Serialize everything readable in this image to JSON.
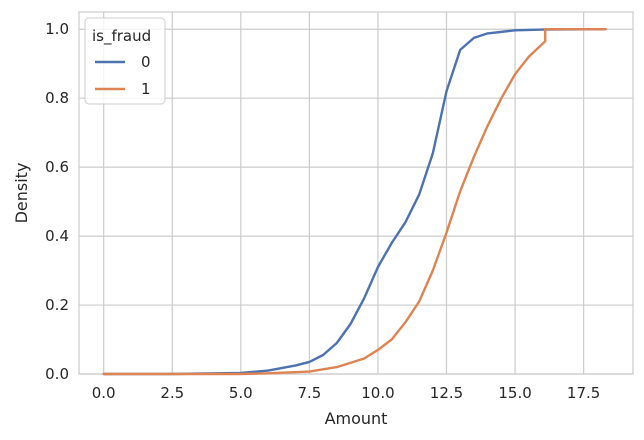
{
  "chart_data": {
    "type": "line",
    "xlabel": "Amount",
    "ylabel": "Density",
    "xlim": [
      -0.9,
      19.3
    ],
    "ylim": [
      0,
      1.05
    ],
    "x_ticks": [
      0.0,
      2.5,
      5.0,
      7.5,
      10.0,
      12.5,
      15.0,
      17.5
    ],
    "x_tick_labels": [
      "0.0",
      "2.5",
      "5.0",
      "7.5",
      "10.0",
      "12.5",
      "15.0",
      "17.5"
    ],
    "y_ticks": [
      0.0,
      0.2,
      0.4,
      0.6,
      0.8,
      1.0
    ],
    "y_tick_labels": [
      "0.0",
      "0.2",
      "0.4",
      "0.6",
      "0.8",
      "1.0"
    ],
    "grid": true,
    "legend": {
      "title": "is_fraud",
      "placement": "top-left"
    },
    "series": [
      {
        "name": "0",
        "color": "#4c72b0",
        "points": [
          [
            0.0,
            0.0
          ],
          [
            2.5,
            0.0
          ],
          [
            5.0,
            0.003
          ],
          [
            6.0,
            0.01
          ],
          [
            7.0,
            0.025
          ],
          [
            7.5,
            0.035
          ],
          [
            8.0,
            0.055
          ],
          [
            8.5,
            0.09
          ],
          [
            9.0,
            0.145
          ],
          [
            9.5,
            0.22
          ],
          [
            10.0,
            0.31
          ],
          [
            10.5,
            0.38
          ],
          [
            11.0,
            0.44
          ],
          [
            11.5,
            0.52
          ],
          [
            12.0,
            0.64
          ],
          [
            12.5,
            0.82
          ],
          [
            13.0,
            0.94
          ],
          [
            13.5,
            0.975
          ],
          [
            14.0,
            0.988
          ],
          [
            15.0,
            0.997
          ],
          [
            16.0,
            0.999
          ],
          [
            18.3,
            1.0
          ]
        ]
      },
      {
        "name": "1",
        "color": "#dd8452",
        "points": [
          [
            0.0,
            0.0
          ],
          [
            5.0,
            0.0
          ],
          [
            6.0,
            0.002
          ],
          [
            7.5,
            0.007
          ],
          [
            8.5,
            0.02
          ],
          [
            9.5,
            0.045
          ],
          [
            10.0,
            0.07
          ],
          [
            10.5,
            0.1
          ],
          [
            11.0,
            0.15
          ],
          [
            11.5,
            0.21
          ],
          [
            12.0,
            0.3
          ],
          [
            12.5,
            0.41
          ],
          [
            13.0,
            0.53
          ],
          [
            13.5,
            0.63
          ],
          [
            14.0,
            0.72
          ],
          [
            14.5,
            0.8
          ],
          [
            15.0,
            0.87
          ],
          [
            15.5,
            0.92
          ],
          [
            16.1,
            0.965
          ],
          [
            16.1,
            1.0
          ],
          [
            18.3,
            1.0
          ]
        ]
      }
    ]
  }
}
